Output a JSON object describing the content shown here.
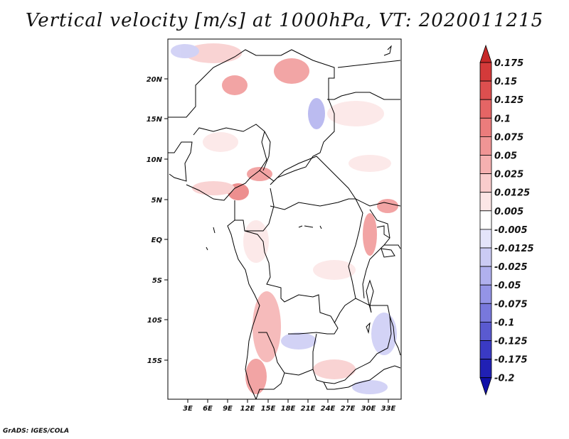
{
  "title": "Vertical velocity [m/s] at 1000hPa, VT: 2020011215",
  "credit": "GrADS: IGES/COLA",
  "map": {
    "lat_labels": [
      "20N",
      "15N",
      "10N",
      "5N",
      "EQ",
      "5S",
      "10S",
      "15S"
    ],
    "lon_labels": [
      "3E",
      "6E",
      "9E",
      "12E",
      "15E",
      "18E",
      "21E",
      "24E",
      "27E",
      "30E",
      "33E"
    ]
  },
  "colorbar": {
    "labels": [
      "0.175",
      "0.15",
      "0.125",
      "0.1",
      "0.075",
      "0.05",
      "0.025",
      "0.0125",
      "0.005",
      "-0.005",
      "-0.0125",
      "-0.025",
      "-0.05",
      "-0.075",
      "-0.1",
      "-0.125",
      "-0.175",
      "-0.2"
    ],
    "colors": [
      "#c62828",
      "#d43a3a",
      "#dd4f4f",
      "#e56565",
      "#eb7c7c",
      "#f09595",
      "#f5b0b0",
      "#f9cccc",
      "#fce6e6",
      "#ffffff",
      "#e4e4fa",
      "#cbcbf4",
      "#b0b0ee",
      "#9494e6",
      "#7878dc",
      "#5a5ad0",
      "#3a3ac4",
      "#2020b4",
      "#1010a8"
    ]
  }
}
